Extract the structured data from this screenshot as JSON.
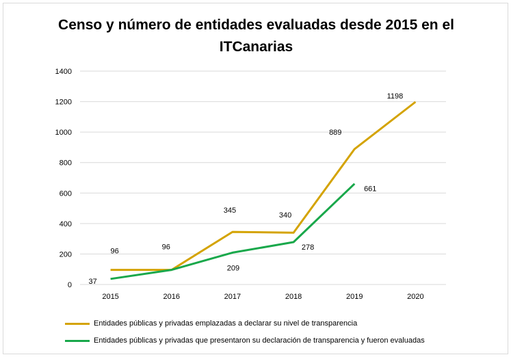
{
  "chart_data": {
    "type": "line",
    "title_line1": "Censo y número de entidades evaluadas desde 2015 en el",
    "title_line2": "ITCanarias",
    "categories": [
      "2015",
      "2016",
      "2017",
      "2018",
      "2019",
      "2020"
    ],
    "ylim": [
      0,
      1400
    ],
    "yticks": [
      0,
      200,
      400,
      600,
      800,
      1000,
      1200,
      1400
    ],
    "grid": true,
    "legend_position": "bottom",
    "series": [
      {
        "name": "Entidades públicas y privadas  emplazadas a declarar su nivel de transparencia",
        "color": "#d4a300",
        "values": [
          96,
          96,
          345,
          340,
          889,
          1198
        ],
        "labels": [
          "96",
          "96",
          "345",
          "340",
          "889",
          "1198"
        ]
      },
      {
        "name": "Entidades públicas y privadas que presentaron su declaración de transparencia y fueron evaluadas",
        "color": "#19a84b",
        "values": [
          37,
          96,
          209,
          278,
          661,
          null
        ],
        "labels": [
          "37",
          "",
          "209",
          "278",
          "661",
          ""
        ]
      }
    ]
  }
}
